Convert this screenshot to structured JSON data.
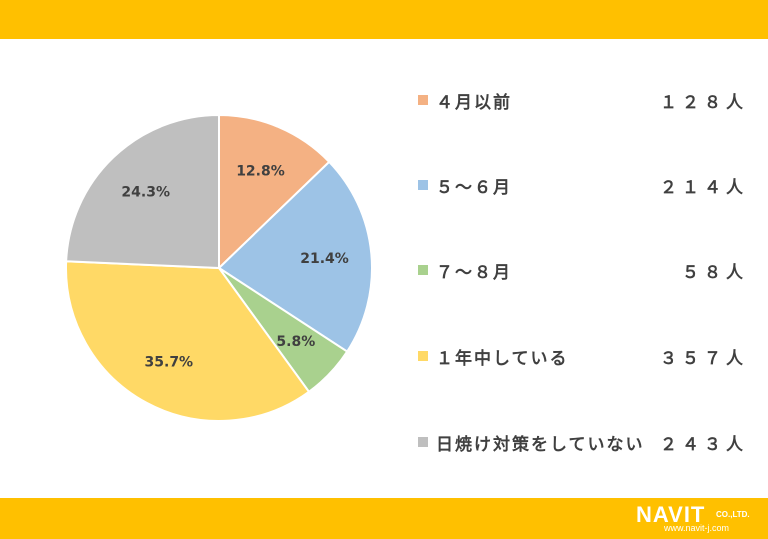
{
  "chart_data": {
    "type": "pie",
    "categories": [
      "４月以前",
      "５～６月",
      "７～８月",
      "１年中している",
      "日焼け対策をしていない"
    ],
    "values": [
      12.8,
      21.4,
      5.8,
      35.7,
      24.3
    ],
    "value_labels": [
      "12.8%",
      "21.4%",
      "5.8%",
      "35.7%",
      "24.3%"
    ],
    "colors": [
      "#F4B183",
      "#9DC3E6",
      "#A9D18E",
      "#FFD966",
      "#BFBFBF"
    ],
    "legend_placement": "right",
    "title": ""
  },
  "legend": [
    {
      "label": "４月以前",
      "count": "１２８人",
      "color": "#F4B183"
    },
    {
      "label": "５～６月",
      "count": "２１４人",
      "color": "#9DC3E6"
    },
    {
      "label": "７～８月",
      "count": "５８人",
      "color": "#A9D18E"
    },
    {
      "label": "１年中している",
      "count": "３５７人",
      "color": "#FFD966"
    },
    {
      "label": "日焼け対策をしていない",
      "count": "２４３人",
      "color": "#BFBFBF"
    }
  ],
  "theme": {
    "band_color": "#FFC000"
  },
  "logo": {
    "name": "NAVIT",
    "company": "CO.,LTD.",
    "url": "www.navit-j.com"
  }
}
